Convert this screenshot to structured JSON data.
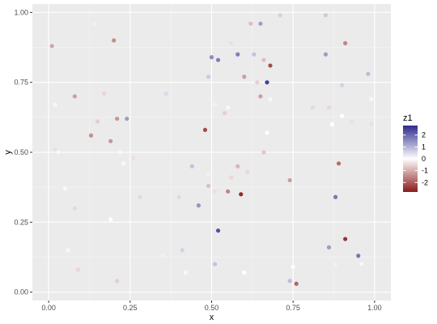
{
  "chart_data": {
    "type": "scatter",
    "xlabel": "x",
    "ylabel": "y",
    "xlim": [
      -0.05,
      1.05
    ],
    "ylim": [
      -0.03,
      1.03
    ],
    "x_ticks": [
      0.0,
      0.25,
      0.5,
      0.75,
      1.0
    ],
    "x_tick_labels": [
      "0.00",
      "0.25",
      "0.50",
      "0.75",
      "1.00"
    ],
    "y_ticks": [
      0.0,
      0.25,
      0.5,
      0.75,
      1.0
    ],
    "y_tick_labels": [
      "0.00",
      "0.25",
      "0.50",
      "0.75",
      "1.00"
    ],
    "grid": true,
    "legend": {
      "title": "z1",
      "placement": "right",
      "breaks": [
        2,
        1,
        0,
        -1,
        -2
      ],
      "labels": [
        "2",
        "1",
        "0",
        "-1",
        "-2"
      ],
      "range": [
        -2.8,
        2.8
      ],
      "colors": {
        "low": "#8b1a1a",
        "mid": "#ffffff",
        "high": "#2e2a8c"
      }
    },
    "points": [
      {
        "x": 0.01,
        "y": 0.88,
        "z": -1.1
      },
      {
        "x": 0.02,
        "y": 0.67,
        "z": -0.1
      },
      {
        "x": 0.02,
        "y": 0.51,
        "z": -0.4
      },
      {
        "x": 0.03,
        "y": 0.5,
        "z": 0.1
      },
      {
        "x": 0.05,
        "y": 0.37,
        "z": -0.1
      },
      {
        "x": 0.06,
        "y": 0.15,
        "z": -0.1
      },
      {
        "x": 0.08,
        "y": 0.7,
        "z": -1.2
      },
      {
        "x": 0.08,
        "y": 0.3,
        "z": 0.5
      },
      {
        "x": 0.09,
        "y": 0.08,
        "z": -0.5
      },
      {
        "x": 0.12,
        "y": 0.54,
        "z": -0.3
      },
      {
        "x": 0.13,
        "y": 0.56,
        "z": -1.4
      },
      {
        "x": 0.14,
        "y": 0.96,
        "z": 0.2
      },
      {
        "x": 0.15,
        "y": 0.61,
        "z": -0.6
      },
      {
        "x": 0.16,
        "y": 0.65,
        "z": 0.3
      },
      {
        "x": 0.17,
        "y": 0.71,
        "z": -0.5
      },
      {
        "x": 0.19,
        "y": 0.54,
        "z": -1.3
      },
      {
        "x": 0.19,
        "y": 0.26,
        "z": 0.0
      },
      {
        "x": 0.2,
        "y": 0.9,
        "z": -1.4
      },
      {
        "x": 0.21,
        "y": 0.62,
        "z": -1.3
      },
      {
        "x": 0.21,
        "y": 0.04,
        "z": -0.6
      },
      {
        "x": 0.22,
        "y": 0.5,
        "z": 0.1
      },
      {
        "x": 0.23,
        "y": 0.46,
        "z": 0.1
      },
      {
        "x": 0.24,
        "y": 0.62,
        "z": 1.3
      },
      {
        "x": 0.26,
        "y": 0.48,
        "z": -0.4
      },
      {
        "x": 0.28,
        "y": 0.34,
        "z": 0.5
      },
      {
        "x": 0.33,
        "y": 0.46,
        "z": 0.3
      },
      {
        "x": 0.35,
        "y": 0.13,
        "z": 0.2
      },
      {
        "x": 0.36,
        "y": 0.71,
        "z": 0.5
      },
      {
        "x": 0.4,
        "y": 0.34,
        "z": 0.5
      },
      {
        "x": 0.41,
        "y": 0.15,
        "z": 0.6
      },
      {
        "x": 0.42,
        "y": 0.07,
        "z": 0.1
      },
      {
        "x": 0.44,
        "y": 0.45,
        "z": 0.8
      },
      {
        "x": 0.46,
        "y": 0.31,
        "z": 1.4
      },
      {
        "x": 0.48,
        "y": 0.58,
        "z": -2.2
      },
      {
        "x": 0.49,
        "y": 0.77,
        "z": 0.7
      },
      {
        "x": 0.49,
        "y": 0.38,
        "z": -0.8
      },
      {
        "x": 0.49,
        "y": 0.42,
        "z": 0.2
      },
      {
        "x": 0.5,
        "y": 0.84,
        "z": 1.5
      },
      {
        "x": 0.51,
        "y": 0.67,
        "z": -0.2
      },
      {
        "x": 0.51,
        "y": 0.36,
        "z": -0.4
      },
      {
        "x": 0.51,
        "y": 0.1,
        "z": 0.8
      },
      {
        "x": 0.52,
        "y": 0.83,
        "z": 1.7
      },
      {
        "x": 0.52,
        "y": 0.22,
        "z": 2.3
      },
      {
        "x": 0.53,
        "y": 0.02,
        "z": -0.3
      },
      {
        "x": 0.54,
        "y": 0.64,
        "z": -0.6
      },
      {
        "x": 0.55,
        "y": 0.66,
        "z": 0.1
      },
      {
        "x": 0.55,
        "y": 0.36,
        "z": -1.5
      },
      {
        "x": 0.56,
        "y": 0.41,
        "z": -0.5
      },
      {
        "x": 0.56,
        "y": 0.89,
        "z": 0.4
      },
      {
        "x": 0.58,
        "y": 0.85,
        "z": 1.7
      },
      {
        "x": 0.58,
        "y": 0.45,
        "z": -0.9
      },
      {
        "x": 0.59,
        "y": 0.35,
        "z": -2.6
      },
      {
        "x": 0.6,
        "y": 0.77,
        "z": -1.2
      },
      {
        "x": 0.6,
        "y": 0.07,
        "z": 0.0
      },
      {
        "x": 0.61,
        "y": 0.43,
        "z": -0.5
      },
      {
        "x": 0.62,
        "y": 0.96,
        "z": -0.8
      },
      {
        "x": 0.63,
        "y": 0.85,
        "z": 0.8
      },
      {
        "x": 0.64,
        "y": 0.75,
        "z": -0.6
      },
      {
        "x": 0.65,
        "y": 0.96,
        "z": 1.3
      },
      {
        "x": 0.65,
        "y": 0.7,
        "z": -1.2
      },
      {
        "x": 0.66,
        "y": 0.83,
        "z": -0.8
      },
      {
        "x": 0.66,
        "y": 0.5,
        "z": -0.7
      },
      {
        "x": 0.67,
        "y": 0.57,
        "z": 0.0
      },
      {
        "x": 0.67,
        "y": 0.75,
        "z": 2.5
      },
      {
        "x": 0.68,
        "y": 0.69,
        "z": 0.1
      },
      {
        "x": 0.68,
        "y": 0.81,
        "z": -2.2
      },
      {
        "x": 0.71,
        "y": 0.99,
        "z": 0.6
      },
      {
        "x": 0.74,
        "y": 0.4,
        "z": -1.2
      },
      {
        "x": 0.74,
        "y": 0.04,
        "z": 0.9
      },
      {
        "x": 0.75,
        "y": 0.09,
        "z": 0.0
      },
      {
        "x": 0.76,
        "y": 0.03,
        "z": -1.9
      },
      {
        "x": 0.81,
        "y": 0.66,
        "z": -0.5
      },
      {
        "x": 0.85,
        "y": 0.99,
        "z": 0.7
      },
      {
        "x": 0.85,
        "y": 0.85,
        "z": 1.3
      },
      {
        "x": 0.86,
        "y": 0.66,
        "z": -0.5
      },
      {
        "x": 0.86,
        "y": 0.16,
        "z": 1.3
      },
      {
        "x": 0.87,
        "y": 0.6,
        "z": 0.0
      },
      {
        "x": 0.88,
        "y": 0.1,
        "z": -0.2
      },
      {
        "x": 0.88,
        "y": 0.34,
        "z": 1.8
      },
      {
        "x": 0.89,
        "y": 0.46,
        "z": -1.8
      },
      {
        "x": 0.9,
        "y": 0.63,
        "z": 0.0
      },
      {
        "x": 0.9,
        "y": 0.74,
        "z": 0.6
      },
      {
        "x": 0.91,
        "y": 0.89,
        "z": -1.5
      },
      {
        "x": 0.91,
        "y": 0.19,
        "z": -2.5
      },
      {
        "x": 0.93,
        "y": 0.61,
        "z": -0.4
      },
      {
        "x": 0.95,
        "y": 0.13,
        "z": 1.8
      },
      {
        "x": 0.96,
        "y": 0.1,
        "z": -0.1
      },
      {
        "x": 0.97,
        "y": 0.25,
        "z": 0.2
      },
      {
        "x": 0.98,
        "y": 0.78,
        "z": 0.9
      },
      {
        "x": 0.99,
        "y": 0.69,
        "z": -0.1
      },
      {
        "x": 0.99,
        "y": 0.6,
        "z": -0.4
      }
    ]
  }
}
